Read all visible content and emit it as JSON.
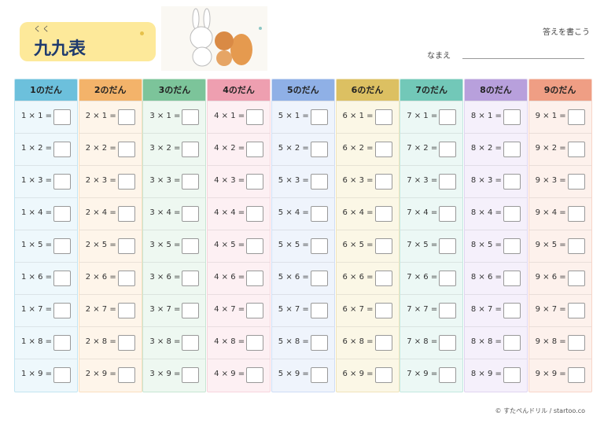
{
  "header": {
    "ruby": "くく",
    "title": "九九表",
    "instruction": "答えを書こう",
    "name_label": "なまえ"
  },
  "columns": [
    {
      "header": "1のだん",
      "rows": [
        "1 × 1 =",
        "1 × 2 =",
        "1 × 3 =",
        "1 × 4 =",
        "1 × 5 =",
        "1 × 6 =",
        "1 × 7 =",
        "1 × 8 =",
        "1 × 9 ="
      ]
    },
    {
      "header": "2のだん",
      "rows": [
        "2 × 1 =",
        "2 × 2 =",
        "2 × 3 =",
        "2 × 4 =",
        "2 × 5 =",
        "2 × 6 =",
        "2 × 7 =",
        "2 × 8 =",
        "2 × 9 ="
      ]
    },
    {
      "header": "3のだん",
      "rows": [
        "3 × 1 =",
        "3 × 2 =",
        "3 × 3 =",
        "3 × 4 =",
        "3 × 5 =",
        "3 × 6 =",
        "3 × 7 =",
        "3 × 8 =",
        "3 × 9 ="
      ]
    },
    {
      "header": "4のだん",
      "rows": [
        "4 × 1 =",
        "4 × 2 =",
        "4 × 3 =",
        "4 × 4 =",
        "4 × 5 =",
        "4 × 6 =",
        "4 × 7 =",
        "4 × 8 =",
        "4 × 9 ="
      ]
    },
    {
      "header": "5のだん",
      "rows": [
        "5 × 1 =",
        "5 × 2 =",
        "5 × 3 =",
        "5 × 4 =",
        "5 × 5 =",
        "5 × 6 =",
        "5 × 7 =",
        "5 × 8 =",
        "5 × 9 ="
      ]
    },
    {
      "header": "6のだん",
      "rows": [
        "6 × 1 =",
        "6 × 2 =",
        "6 × 3 =",
        "6 × 4 =",
        "6 × 5 =",
        "6 × 6 =",
        "6 × 7 =",
        "6 × 8 =",
        "6 × 9 ="
      ]
    },
    {
      "header": "7のだん",
      "rows": [
        "7 × 1 =",
        "7 × 2 =",
        "7 × 3 =",
        "7 × 4 =",
        "7 × 5 =",
        "7 × 6 =",
        "7 × 7 =",
        "7 × 8 =",
        "7 × 9 ="
      ]
    },
    {
      "header": "8のだん",
      "rows": [
        "8 × 1 =",
        "8 × 2 =",
        "8 × 3 =",
        "8 × 4 =",
        "8 × 5 =",
        "8 × 6 =",
        "8 × 7 =",
        "8 × 8 =",
        "8 × 9 ="
      ]
    },
    {
      "header": "9のだん",
      "rows": [
        "9 × 1 =",
        "9 × 2 =",
        "9 × 3 =",
        "9 × 4 =",
        "9 × 5 =",
        "9 × 6 =",
        "9 × 7 =",
        "9 × 8 =",
        "9 × 9 ="
      ]
    }
  ],
  "footer": "© すたぺんドリル  /  startoo.co"
}
